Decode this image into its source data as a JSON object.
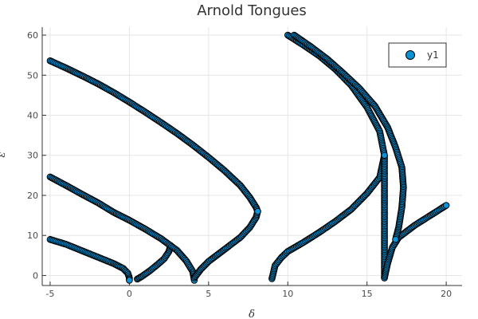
{
  "chart_data": {
    "type": "scatter",
    "title": "Arnold Tongues",
    "xlabel": "δ",
    "ylabel": "ε",
    "xlim": [
      -5.5,
      21.0
    ],
    "ylim": [
      -2.5,
      62.0
    ],
    "xticks": [
      -5,
      0,
      5,
      10,
      15,
      20
    ],
    "yticks": [
      0,
      10,
      20,
      30,
      40,
      50,
      60
    ],
    "grid": true,
    "legend_position": "top-right",
    "colors": {
      "marker_fill": "#0b91d6",
      "marker_edge": "#000000",
      "grid": "#e6e6e6",
      "axis": "#333333"
    },
    "series": [
      {
        "name": "y1",
        "curves": [
          {
            "x": [
              -5.0,
              -4.0,
              -3.0,
              -2.0,
              -1.0,
              -0.4,
              -0.1,
              0.0,
              0.0
            ],
            "y": [
              9.0,
              7.8,
              6.2,
              4.6,
              3.0,
              1.8,
              0.6,
              -0.6,
              -1.2
            ]
          },
          {
            "x": [
              0.5,
              0.8,
              1.3,
              1.8,
              2.2,
              2.5,
              2.6
            ],
            "y": [
              -0.9,
              -0.2,
              1.2,
              2.8,
              4.2,
              6.0,
              7.5
            ]
          },
          {
            "x": [
              -5.0,
              -4.0,
              -3.0,
              -2.0,
              -1.0,
              0.0,
              1.0,
              2.0,
              3.0,
              3.6,
              4.0,
              4.1
            ],
            "y": [
              24.6,
              22.5,
              20.3,
              18.2,
              15.8,
              13.8,
              11.6,
              9.2,
              6.3,
              3.6,
              1.0,
              -1.2
            ]
          },
          {
            "x": [
              4.1,
              4.5,
              5.0,
              6.0,
              7.0,
              7.6,
              8.0,
              8.1
            ],
            "y": [
              -0.6,
              1.5,
              3.5,
              6.5,
              9.5,
              12.0,
              14.5,
              16.0
            ]
          },
          {
            "x": [
              -5.0,
              -4.0,
              -3.0,
              -2.0,
              -1.0,
              0.0,
              1.0,
              2.0,
              3.0,
              4.0,
              5.0,
              6.0,
              7.0,
              7.6,
              8.0,
              8.1
            ],
            "y": [
              53.6,
              51.8,
              49.9,
              47.9,
              45.7,
              43.3,
              40.8,
              38.2,
              35.5,
              32.6,
              29.5,
              26.2,
              22.5,
              19.5,
              17.0,
              16.0
            ]
          },
          {
            "x": [
              9.0,
              9.2,
              9.6,
              10.0,
              11.0,
              12.0,
              13.0,
              14.0,
              15.0,
              15.8,
              16.1,
              16.1,
              16.1
            ],
            "y": [
              -0.8,
              2.5,
              4.5,
              6.0,
              8.3,
              10.8,
              13.5,
              16.5,
              20.5,
              24.5,
              30.0,
              15.0,
              -0.6
            ]
          },
          {
            "x": [
              16.1,
              16.3,
              16.6,
              17.0,
              18.0,
              19.0,
              20.0
            ],
            "y": [
              -0.6,
              3.0,
              7.0,
              9.5,
              12.5,
              15.0,
              17.5
            ]
          },
          {
            "x": [
              10.0,
              11.0,
              12.0,
              13.0,
              14.0,
              15.0,
              15.8,
              16.1
            ],
            "y": [
              60.0,
              57.5,
              54.8,
              51.5,
              47.5,
              42.0,
              36.0,
              30.0
            ]
          },
          {
            "x": [
              10.4,
              11.5,
              12.5,
              13.5,
              14.5,
              15.5,
              16.3,
              16.8,
              17.2,
              17.3,
              17.2,
              17.0,
              16.8
            ],
            "y": [
              60.0,
              57.0,
              54.0,
              50.5,
              46.8,
              42.3,
              37.0,
              32.0,
              27.0,
              22.0,
              17.0,
              12.0,
              9.0
            ]
          }
        ]
      }
    ]
  }
}
